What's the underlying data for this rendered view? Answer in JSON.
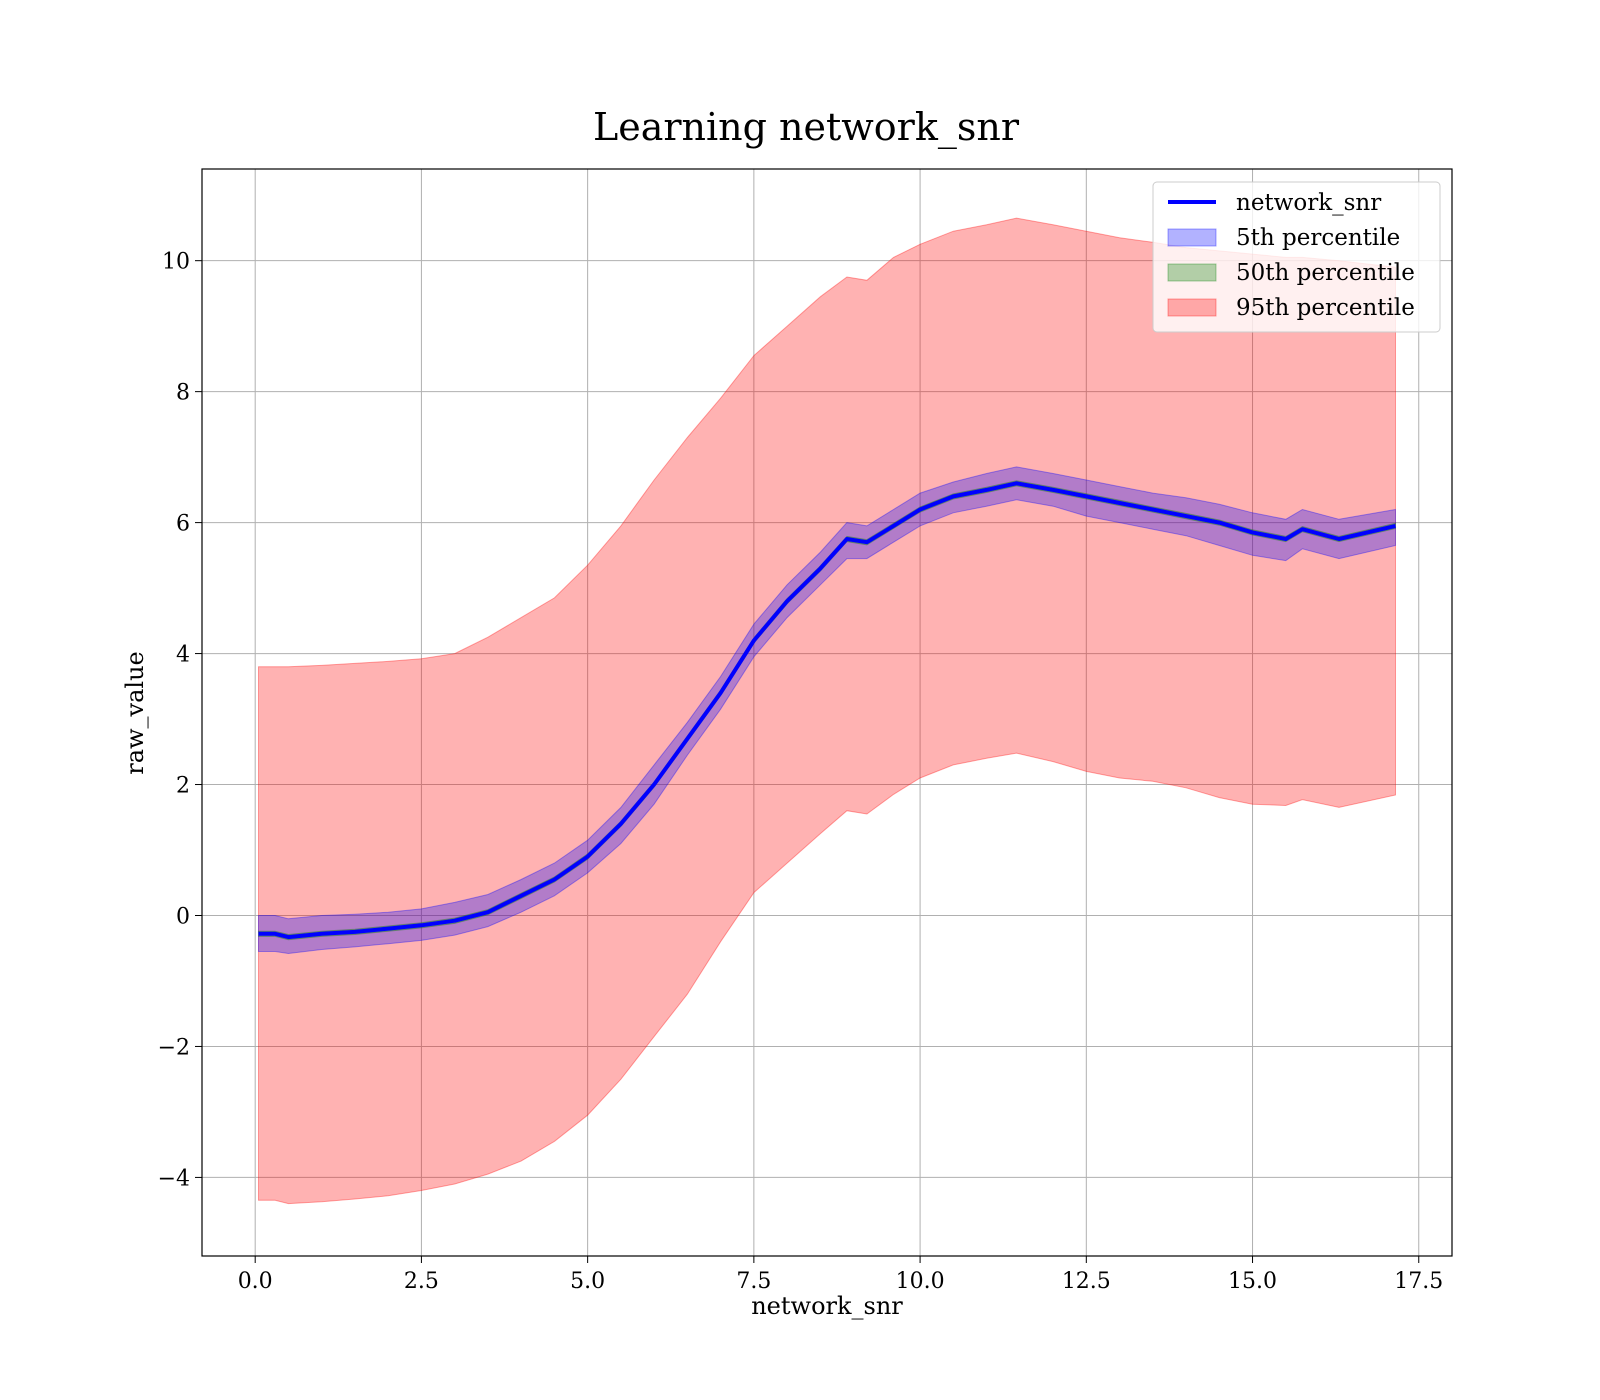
{
  "chart_data": {
    "type": "line",
    "title": "Learning network_snr",
    "xlabel": "network_snr",
    "ylabel": "raw_value",
    "xlim": [
      -0.8,
      18.0
    ],
    "ylim": [
      -5.2,
      11.4
    ],
    "x_ticks": [
      0.0,
      2.5,
      5.0,
      7.5,
      10.0,
      12.5,
      15.0,
      17.5
    ],
    "x_tick_labels": [
      "0.0",
      "2.5",
      "5.0",
      "7.5",
      "10.0",
      "12.5",
      "15.0",
      "17.5"
    ],
    "y_ticks": [
      -4,
      -2,
      0,
      2,
      4,
      6,
      8,
      10
    ],
    "y_tick_labels": [
      "−4",
      "−2",
      "0",
      "2",
      "4",
      "6",
      "8",
      "10"
    ],
    "grid": true,
    "legend_position": "top-right",
    "legend": [
      {
        "label": "network_snr",
        "kind": "line",
        "color": "#0000ff"
      },
      {
        "label": "5th percentile",
        "kind": "patch",
        "color": "#0000ff"
      },
      {
        "label": "50th percentile",
        "kind": "patch",
        "color": "#008000"
      },
      {
        "label": "95th percentile",
        "kind": "patch",
        "color": "#ff0000"
      }
    ],
    "x": [
      0.05,
      0.3,
      0.5,
      1.0,
      1.5,
      2.0,
      2.5,
      3.0,
      3.5,
      4.0,
      4.5,
      5.0,
      5.5,
      6.0,
      6.5,
      7.0,
      7.5,
      8.0,
      8.5,
      8.9,
      9.2,
      9.6,
      10.0,
      10.5,
      11.0,
      11.45,
      12.0,
      12.5,
      13.0,
      13.5,
      14.0,
      14.5,
      15.0,
      15.5,
      15.75,
      16.3,
      17.15
    ],
    "series": [
      {
        "name": "network_snr",
        "color": "#0000ff",
        "values": [
          -0.28,
          -0.28,
          -0.33,
          -0.28,
          -0.25,
          -0.2,
          -0.15,
          -0.08,
          0.05,
          0.3,
          0.55,
          0.9,
          1.4,
          2.0,
          2.7,
          3.4,
          4.2,
          4.8,
          5.3,
          5.75,
          5.7,
          5.95,
          6.2,
          6.4,
          6.5,
          6.6,
          6.5,
          6.4,
          6.3,
          6.2,
          6.1,
          6.0,
          5.85,
          5.75,
          5.9,
          5.75,
          5.95
        ]
      },
      {
        "name": "5th percentile",
        "color": "#0000ff",
        "lower": [
          -0.55,
          -0.55,
          -0.58,
          -0.52,
          -0.48,
          -0.43,
          -0.38,
          -0.3,
          -0.17,
          0.05,
          0.3,
          0.65,
          1.1,
          1.7,
          2.45,
          3.15,
          3.95,
          4.55,
          5.05,
          5.45,
          5.45,
          5.7,
          5.95,
          6.15,
          6.25,
          6.35,
          6.25,
          6.1,
          6.0,
          5.9,
          5.8,
          5.65,
          5.5,
          5.42,
          5.6,
          5.45,
          5.65
        ],
        "upper": [
          0.0,
          0.0,
          -0.05,
          0.0,
          0.02,
          0.05,
          0.1,
          0.2,
          0.32,
          0.55,
          0.8,
          1.15,
          1.65,
          2.3,
          2.95,
          3.65,
          4.45,
          5.05,
          5.55,
          6.0,
          5.95,
          6.2,
          6.45,
          6.62,
          6.75,
          6.85,
          6.75,
          6.65,
          6.55,
          6.45,
          6.38,
          6.28,
          6.15,
          6.05,
          6.2,
          6.05,
          6.2
        ]
      },
      {
        "name": "50th percentile",
        "color": "#008000",
        "lower": [
          -0.32,
          -0.32,
          -0.37,
          -0.32,
          -0.29,
          -0.24,
          -0.19,
          -0.12,
          0.01,
          0.26,
          0.51,
          0.86,
          1.36,
          1.96,
          2.66,
          3.36,
          4.16,
          4.76,
          5.26,
          5.71,
          5.66,
          5.91,
          6.16,
          6.36,
          6.46,
          6.56,
          6.46,
          6.36,
          6.26,
          6.16,
          6.06,
          5.96,
          5.81,
          5.71,
          5.86,
          5.71,
          5.91
        ],
        "upper": [
          -0.24,
          -0.24,
          -0.29,
          -0.24,
          -0.21,
          -0.16,
          -0.11,
          -0.04,
          0.09,
          0.34,
          0.59,
          0.94,
          1.44,
          2.04,
          2.74,
          3.44,
          4.24,
          4.84,
          5.34,
          5.79,
          5.74,
          5.99,
          6.24,
          6.44,
          6.54,
          6.64,
          6.54,
          6.44,
          6.34,
          6.24,
          6.14,
          6.04,
          5.89,
          5.79,
          5.94,
          5.79,
          5.99
        ]
      },
      {
        "name": "95th percentile",
        "color": "#ff0000",
        "lower": [
          -4.35,
          -4.35,
          -4.4,
          -4.37,
          -4.33,
          -4.28,
          -4.2,
          -4.1,
          -3.95,
          -3.75,
          -3.45,
          -3.05,
          -2.5,
          -1.85,
          -1.2,
          -0.4,
          0.35,
          0.8,
          1.25,
          1.6,
          1.55,
          1.85,
          2.1,
          2.3,
          2.4,
          2.48,
          2.35,
          2.2,
          2.1,
          2.05,
          1.95,
          1.8,
          1.7,
          1.68,
          1.77,
          1.65,
          1.84
        ],
        "upper": [
          3.8,
          3.8,
          3.8,
          3.82,
          3.85,
          3.88,
          3.92,
          4.0,
          4.25,
          4.55,
          4.85,
          5.35,
          5.95,
          6.65,
          7.3,
          7.9,
          8.55,
          9.0,
          9.45,
          9.75,
          9.7,
          10.05,
          10.25,
          10.45,
          10.55,
          10.65,
          10.55,
          10.45,
          10.35,
          10.28,
          10.2,
          10.15,
          10.1,
          10.05,
          10.05,
          10.0,
          9.9
        ]
      }
    ]
  }
}
